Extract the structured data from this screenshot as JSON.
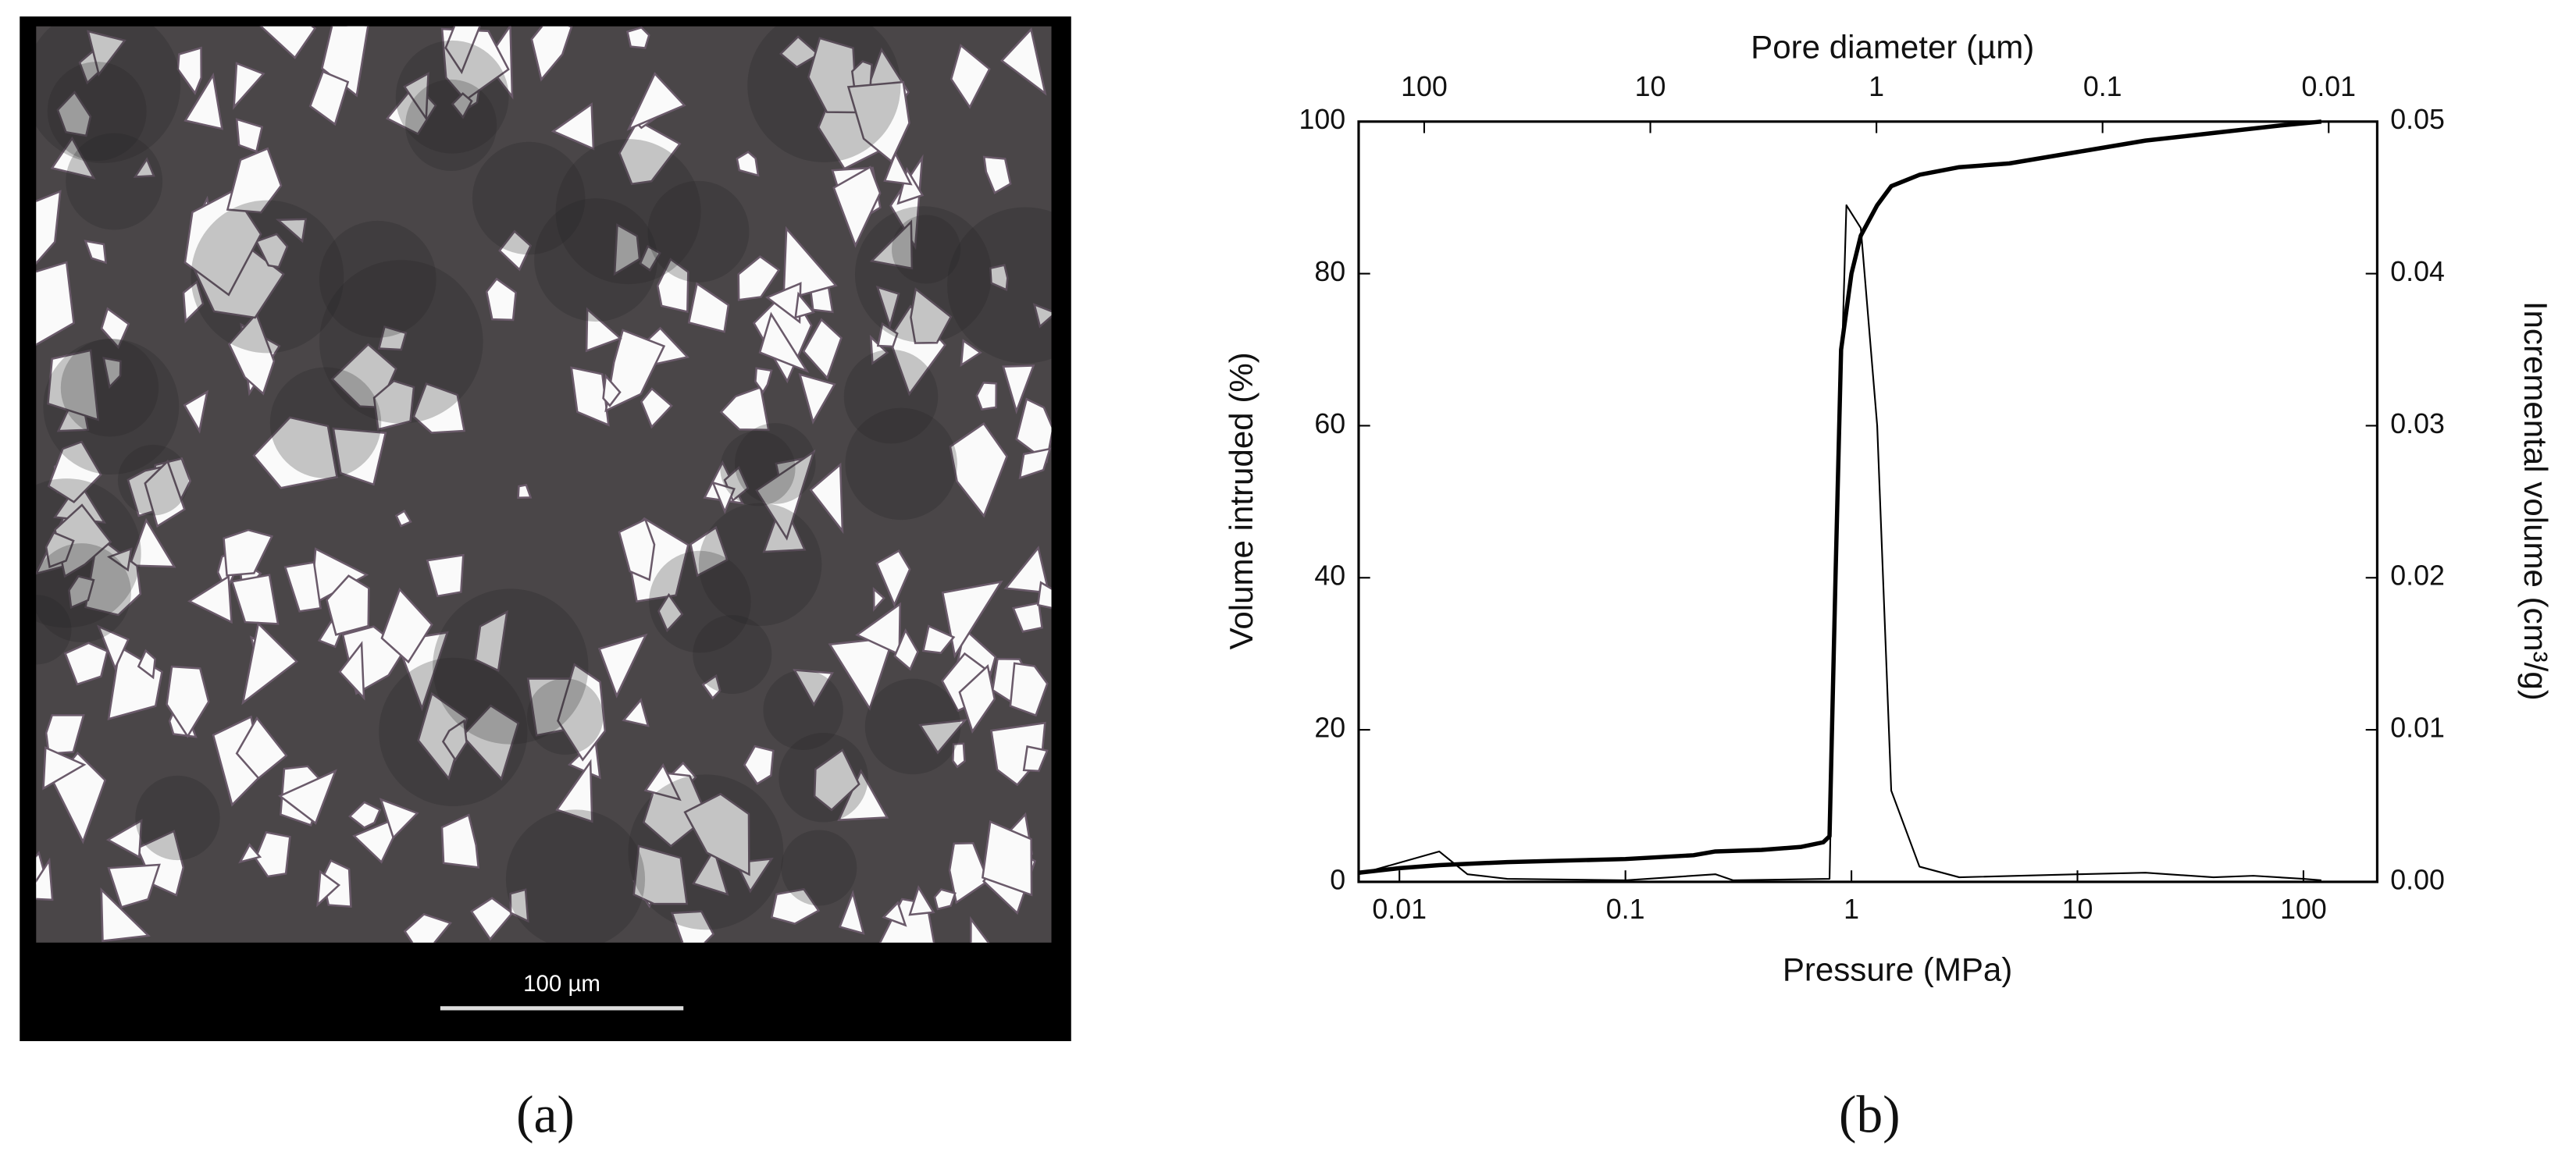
{
  "image_panel": {
    "scale_bar_label": "100 µm",
    "caption": "(a)"
  },
  "chart_caption": "(b)",
  "chart_data": {
    "type": "line",
    "xlabel": "Pressure (MPa)",
    "x2label": "Pore diameter (µm)",
    "ylabel": "Volume intruded (%)",
    "y2label": "Incremental volume (cm³/g)",
    "xscale": "log",
    "xlim": [
      0.0066,
      212
    ],
    "xticks": [
      0.01,
      0.1,
      1,
      10,
      100
    ],
    "x2lim": [
      195,
      0.0061
    ],
    "x2ticks": [
      100,
      10,
      1,
      0.1,
      0.01
    ],
    "ylim": [
      0,
      100
    ],
    "yticks": [
      0,
      20,
      40,
      60,
      80,
      100
    ],
    "y2lim": [
      0,
      0.05
    ],
    "y2ticks": [
      {
        "value": 0,
        "label": "0.00"
      },
      0.01,
      0.02,
      0.03,
      0.04,
      0.05
    ],
    "series": [
      {
        "color": "#000000",
        "linewidth": 2.6,
        "x": [
          0.0066,
          0.01,
          0.015,
          0.03,
          0.1,
          0.2,
          0.25,
          0.4,
          0.6,
          0.75,
          0.8,
          0.85,
          0.9,
          1.0,
          1.1,
          1.3,
          1.5,
          2,
          3,
          5,
          10,
          20,
          40,
          80,
          120
        ],
        "values": [
          1.2,
          1.8,
          2.2,
          2.6,
          3.0,
          3.5,
          4.0,
          4.2,
          4.6,
          5.2,
          6,
          40,
          70,
          80,
          85,
          89,
          91.5,
          93,
          94,
          94.5,
          96,
          97.5,
          98.5,
          99.5,
          100
        ]
      },
      {
        "color": "#000000",
        "linewidth": 1,
        "axis": "y2",
        "x": [
          0.0066,
          0.015,
          0.02,
          0.03,
          0.1,
          0.25,
          0.3,
          0.8,
          0.85,
          0.95,
          1.1,
          1.3,
          1.5,
          2,
          3,
          10,
          20,
          40,
          60,
          100,
          120
        ],
        "values": [
          0.0005,
          0.002,
          0.0005,
          0.0002,
          0.0001,
          0.0005,
          0.0001,
          0.0002,
          0.02,
          0.0445,
          0.043,
          0.03,
          0.006,
          0.001,
          0.0003,
          0.0005,
          0.0006,
          0.0003,
          0.0004,
          0.0002,
          0.0001
        ]
      }
    ]
  }
}
